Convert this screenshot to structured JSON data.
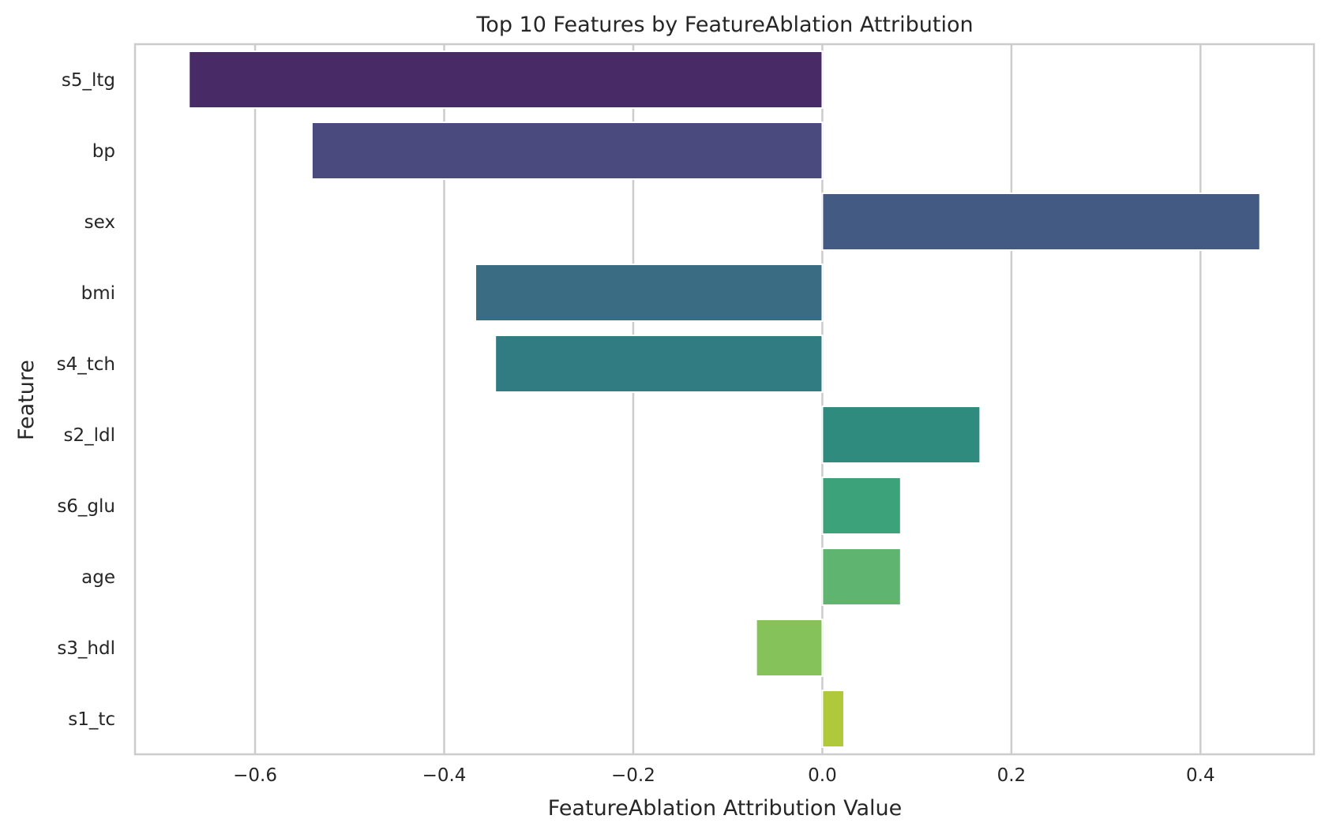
{
  "chart_data": {
    "type": "bar",
    "orientation": "horizontal",
    "title": "Top 10 Features by FeatureAblation Attribution",
    "xlabel": "FeatureAblation Attribution Value",
    "ylabel": "Feature",
    "xlim": [
      -0.727,
      0.52
    ],
    "xticks": [
      -0.6,
      -0.4,
      -0.2,
      0.0,
      0.2,
      0.4
    ],
    "xtick_labels": [
      "−0.6",
      "−0.4",
      "−0.2",
      "0.0",
      "0.2",
      "0.4"
    ],
    "grid": true,
    "categories": [
      "s5_ltg",
      "bp",
      "sex",
      "bmi",
      "s4_tch",
      "s2_ldl",
      "s6_glu",
      "age",
      "s3_hdl",
      "s1_tc"
    ],
    "values": [
      -0.67,
      -0.54,
      0.463,
      -0.367,
      -0.346,
      0.167,
      0.083,
      0.083,
      -0.07,
      0.023
    ],
    "colors": [
      "#482a66",
      "#4a4a7e",
      "#435a82",
      "#3a6c83",
      "#317c82",
      "#2e8b7e",
      "#3ba27a",
      "#5fb56f",
      "#86c25a",
      "#b0c93a"
    ]
  }
}
